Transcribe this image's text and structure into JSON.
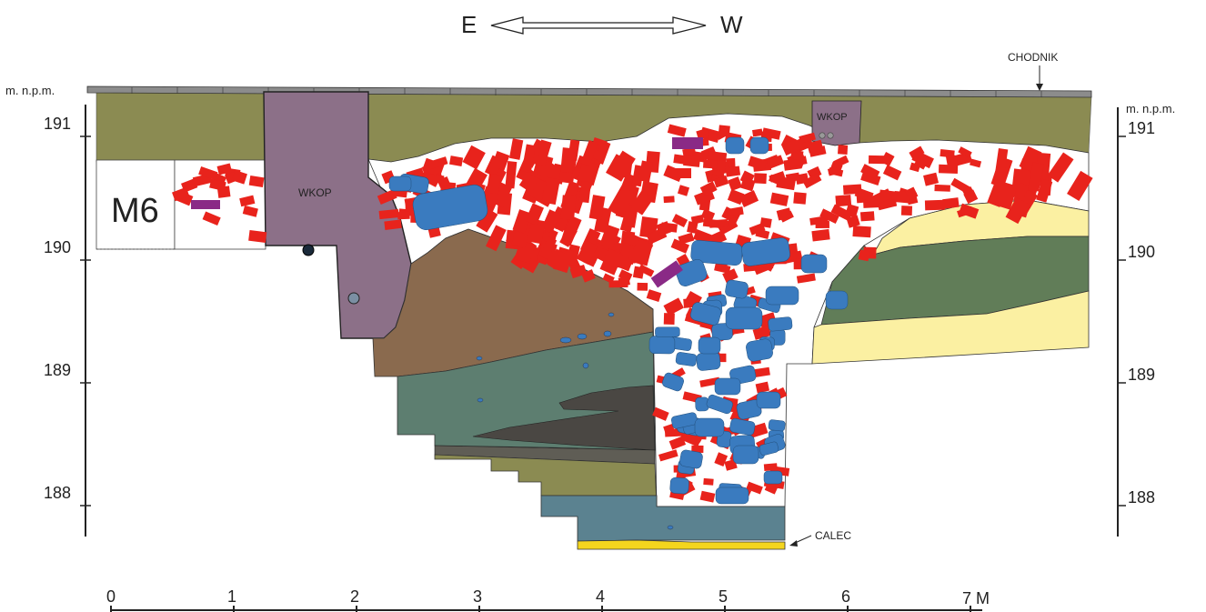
{
  "orientation": {
    "east": "E",
    "west": "W"
  },
  "elevation_axis": {
    "unit_label": "m. n.p.m.",
    "ticks": [
      "191",
      "190",
      "189",
      "188"
    ]
  },
  "scale_bar": {
    "ticks": [
      "0",
      "1",
      "2",
      "3",
      "4",
      "5",
      "6",
      "7 M"
    ]
  },
  "labels": {
    "pavement": "CHODNIK",
    "trench_1": "WKOP",
    "trench_2": "WKOP",
    "feature": "M6",
    "bedrock": "CALEC"
  },
  "colors": {
    "olive_layer": "#8b8b52",
    "trench_fill": "#8c7088",
    "brick": "#e8231c",
    "stone": "#3a7bbf",
    "purple_brick": "#8a2a86",
    "brown_layer": "#8a6a4e",
    "teal_layer": "#5d7e70",
    "dark_lens": "#4a4743",
    "blue_gray_layer": "#5b8290",
    "sand": "#fbf0a2",
    "green_layer": "#617d58",
    "bedrock_yellow": "#f4d51e",
    "pavement_gray": "#8c8c8c"
  }
}
